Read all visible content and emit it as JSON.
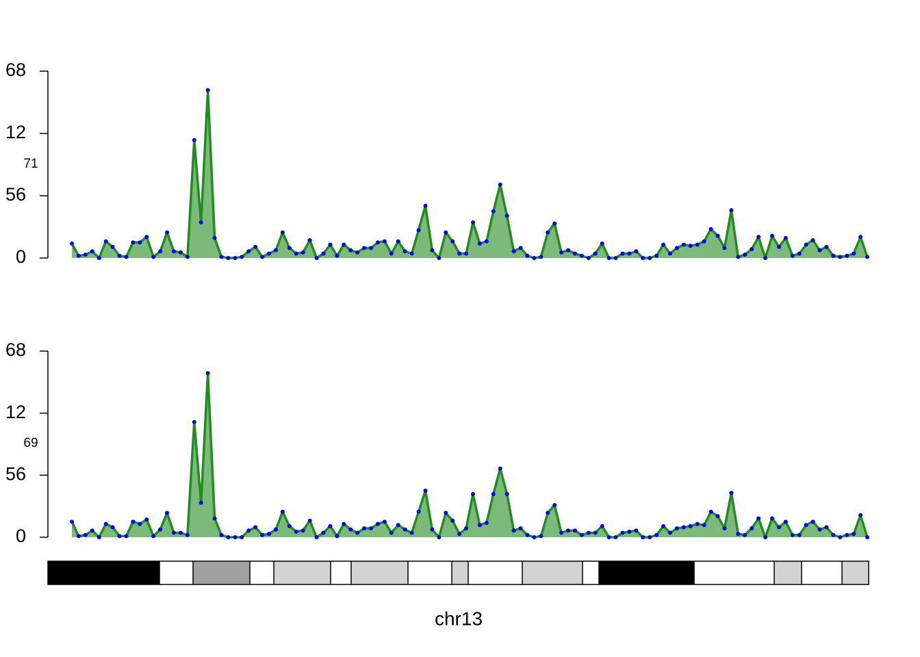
{
  "chart_data": [
    {
      "type": "area",
      "label": "71",
      "color": "#228b22",
      "fill": "#7cba7a",
      "point_color": "#0000ff",
      "ylim": [
        0,
        168
      ],
      "yticks": [
        0,
        56,
        {
          "value": 112,
          "label": "12"
        },
        {
          "value": 168,
          "label": "68"
        }
      ],
      "values": [
        13,
        2,
        3,
        6,
        0,
        15,
        10,
        2,
        1,
        14,
        14,
        19,
        1,
        6,
        23,
        6,
        5,
        1,
        106,
        32,
        151,
        18,
        1,
        0,
        0,
        1,
        6,
        10,
        1,
        4,
        7,
        23,
        9,
        4,
        5,
        16,
        0,
        4,
        12,
        2,
        12,
        7,
        5,
        9,
        9,
        14,
        15,
        4,
        15,
        6,
        4,
        25,
        47,
        7,
        0,
        23,
        15,
        4,
        4,
        32,
        13,
        15,
        42,
        66,
        38,
        6,
        9,
        2,
        0,
        1,
        23,
        31,
        5,
        7,
        4,
        2,
        0,
        4,
        13,
        0,
        0,
        4,
        4,
        6,
        0,
        0,
        2,
        12,
        4,
        9,
        12,
        11,
        12,
        15,
        26,
        20,
        9,
        43,
        1,
        3,
        8,
        19,
        0,
        20,
        10,
        18,
        2,
        4,
        12,
        16,
        7,
        10,
        2,
        1,
        2,
        4,
        19,
        1
      ]
    },
    {
      "type": "area",
      "label": "69",
      "color": "#228b22",
      "fill": "#7cba7a",
      "point_color": "#0000ff",
      "ylim": [
        0,
        168
      ],
      "yticks": [
        0,
        56,
        {
          "value": 112,
          "label": "12"
        },
        {
          "value": 168,
          "label": "68"
        }
      ],
      "xlabel": "chr13",
      "values": [
        14,
        1,
        2,
        6,
        0,
        12,
        9,
        1,
        1,
        14,
        12,
        16,
        1,
        7,
        22,
        4,
        4,
        2,
        104,
        31,
        148,
        17,
        2,
        0,
        0,
        0,
        6,
        9,
        2,
        3,
        7,
        23,
        10,
        5,
        6,
        15,
        0,
        4,
        10,
        1,
        12,
        7,
        4,
        8,
        8,
        12,
        14,
        4,
        11,
        7,
        4,
        23,
        42,
        7,
        0,
        22,
        15,
        3,
        8,
        39,
        11,
        13,
        39,
        62,
        39,
        6,
        8,
        2,
        0,
        1,
        22,
        29,
        4,
        6,
        6,
        2,
        4,
        4,
        10,
        0,
        0,
        4,
        5,
        6,
        0,
        0,
        2,
        10,
        4,
        8,
        9,
        10,
        12,
        11,
        23,
        19,
        8,
        40,
        3,
        2,
        8,
        17,
        0,
        17,
        9,
        14,
        2,
        2,
        11,
        14,
        7,
        9,
        2,
        0,
        2,
        3,
        20,
        0
      ]
    }
  ]
}
